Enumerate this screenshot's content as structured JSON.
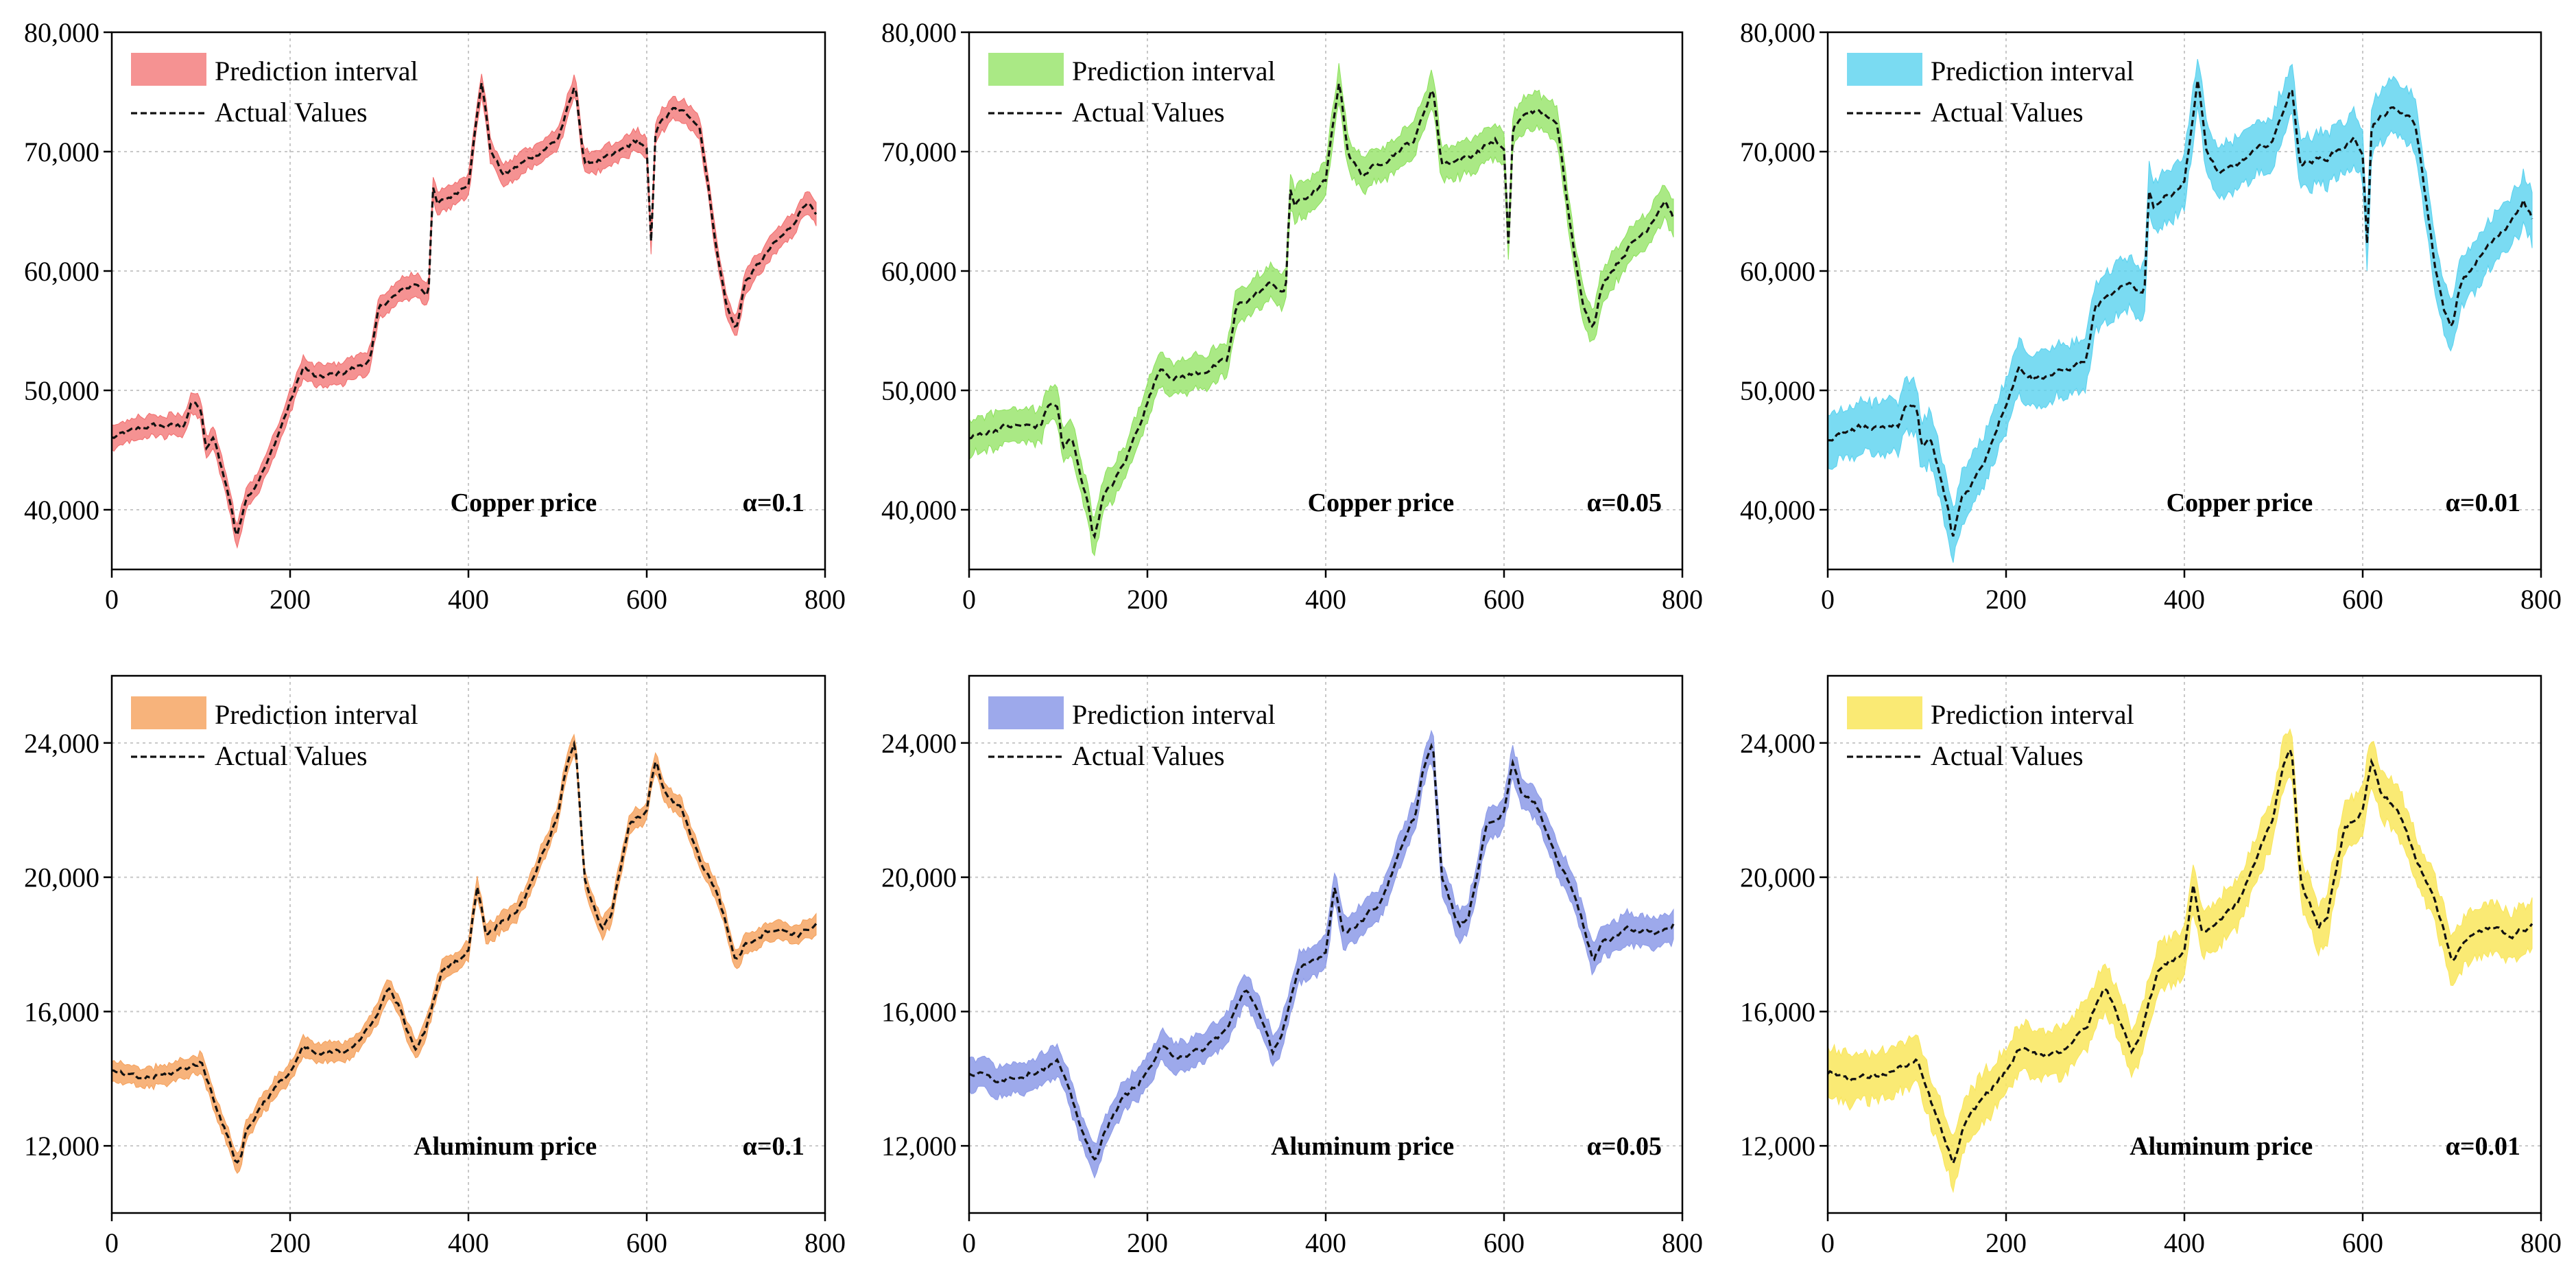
{
  "figure": {
    "legend_labels": [
      "Prediction interval",
      "Actual Values"
    ]
  },
  "chart_data": [
    {
      "type": "line",
      "commodity": "Copper price",
      "alpha": "α=0.1",
      "band_color": "#f26d6d",
      "band_opacity": 0.75,
      "xlim": [
        0,
        800
      ],
      "ylim": [
        35000,
        80000
      ],
      "xticks": [
        0,
        200,
        400,
        600,
        800
      ],
      "xticklabels": [
        "0",
        "200",
        "400",
        "600",
        "800"
      ],
      "yticks": [
        40000,
        50000,
        60000,
        70000,
        80000
      ],
      "yticklabels": [
        "40,000",
        "50,000",
        "60,000",
        "70,000",
        "80,000"
      ],
      "grid": true,
      "legend": "top-left",
      "band_halfwidth": 900,
      "series": [
        {
          "name": "Actual Values",
          "x": [
            0,
            40,
            80,
            90,
            100,
            105,
            115,
            135,
            140,
            150,
            160,
            175,
            200,
            215,
            230,
            260,
            290,
            300,
            340,
            355,
            360,
            365,
            385,
            400,
            415,
            425,
            440,
            470,
            500,
            520,
            530,
            560,
            590,
            600,
            605,
            610,
            630,
            650,
            660,
            680,
            690,
            700,
            710,
            740,
            760,
            780,
            790
          ],
          "y": [
            46000,
            47000,
            47000,
            49000,
            48500,
            45000,
            46000,
            40000,
            37500,
            41000,
            42000,
            44000,
            49000,
            52000,
            51000,
            51500,
            52500,
            57000,
            59000,
            58000,
            67000,
            65500,
            66500,
            67500,
            76000,
            70000,
            68000,
            69500,
            71000,
            75500,
            69000,
            69500,
            71000,
            70000,
            62000,
            72000,
            73500,
            73000,
            72000,
            61000,
            57000,
            55000,
            59000,
            62000,
            63500,
            66000,
            64500
          ]
        }
      ]
    },
    {
      "type": "line",
      "commodity": "Copper price",
      "alpha": "α=0.05",
      "band_color": "#8de25c",
      "band_opacity": 0.75,
      "xlim": [
        0,
        800
      ],
      "ylim": [
        35000,
        80000
      ],
      "xticks": [
        0,
        200,
        400,
        600,
        800
      ],
      "xticklabels": [
        "0",
        "200",
        "400",
        "600",
        "800"
      ],
      "yticks": [
        40000,
        50000,
        60000,
        70000,
        80000
      ],
      "yticklabels": [
        "40,000",
        "50,000",
        "60,000",
        "70,000",
        "80,000"
      ],
      "grid": true,
      "legend": "top-left",
      "band_halfwidth": 1400,
      "series": [
        {
          "name": "Actual Values",
          "x": [
            0,
            40,
            80,
            90,
            100,
            105,
            115,
            135,
            140,
            150,
            160,
            175,
            200,
            215,
            230,
            260,
            290,
            300,
            340,
            355,
            360,
            365,
            385,
            400,
            415,
            425,
            440,
            470,
            500,
            520,
            530,
            560,
            590,
            600,
            605,
            610,
            630,
            650,
            660,
            680,
            690,
            700,
            710,
            740,
            760,
            780,
            790
          ],
          "y": [
            46000,
            47000,
            47000,
            49000,
            48500,
            45000,
            46000,
            40000,
            37500,
            41000,
            42000,
            44000,
            49000,
            52000,
            51000,
            51500,
            52500,
            57000,
            59000,
            58000,
            67000,
            65500,
            66500,
            67500,
            76000,
            70000,
            68000,
            69500,
            71000,
            75500,
            69000,
            69500,
            71000,
            70000,
            62000,
            72000,
            73500,
            73000,
            72000,
            61000,
            57000,
            55000,
            59000,
            62000,
            63500,
            66000,
            64500
          ]
        }
      ]
    },
    {
      "type": "line",
      "commodity": "Copper price",
      "alpha": "α=0.01",
      "band_color": "#59d2ef",
      "band_opacity": 0.8,
      "xlim": [
        0,
        800
      ],
      "ylim": [
        35000,
        80000
      ],
      "xticks": [
        0,
        200,
        400,
        600,
        800
      ],
      "xticklabels": [
        "0",
        "200",
        "400",
        "600",
        "800"
      ],
      "yticks": [
        40000,
        50000,
        60000,
        70000,
        80000
      ],
      "yticklabels": [
        "40,000",
        "50,000",
        "60,000",
        "70,000",
        "80,000"
      ],
      "grid": true,
      "legend": "top-left",
      "band_halfwidth": 2100,
      "series": [
        {
          "name": "Actual Values",
          "x": [
            0,
            40,
            80,
            90,
            100,
            105,
            115,
            135,
            140,
            150,
            160,
            175,
            200,
            215,
            230,
            260,
            290,
            300,
            340,
            355,
            360,
            365,
            385,
            400,
            415,
            425,
            440,
            470,
            500,
            520,
            530,
            560,
            590,
            600,
            605,
            610,
            630,
            650,
            660,
            680,
            690,
            700,
            710,
            740,
            760,
            780,
            790
          ],
          "y": [
            46000,
            47000,
            47000,
            49000,
            48500,
            45000,
            46000,
            40000,
            37500,
            41000,
            42000,
            44000,
            49000,
            52000,
            51000,
            51500,
            52500,
            57000,
            59000,
            58000,
            67000,
            65500,
            66500,
            67500,
            76000,
            70000,
            68000,
            69500,
            71000,
            75500,
            69000,
            69500,
            71000,
            70000,
            62000,
            72000,
            73500,
            73000,
            72000,
            61000,
            57000,
            55000,
            59000,
            62000,
            63500,
            66000,
            64500
          ]
        }
      ]
    },
    {
      "type": "line",
      "commodity": "Aluminum price",
      "alpha": "α=0.1",
      "band_color": "#f5a05a",
      "band_opacity": 0.8,
      "xlim": [
        0,
        800
      ],
      "ylim": [
        10000,
        26000
      ],
      "xticks": [
        0,
        200,
        400,
        600,
        800
      ],
      "xticklabels": [
        "0",
        "200",
        "400",
        "600",
        "800"
      ],
      "yticks": [
        12000,
        16000,
        20000,
        24000
      ],
      "yticklabels": [
        "12,000",
        "16,000",
        "20,000",
        "24,000"
      ],
      "grid": true,
      "legend": "top-left",
      "band_halfwidth": 280,
      "series": [
        {
          "name": "Actual Values",
          "x": [
            0,
            30,
            60,
            100,
            120,
            140,
            145,
            150,
            170,
            200,
            215,
            230,
            260,
            290,
            310,
            320,
            340,
            350,
            370,
            400,
            410,
            420,
            460,
            500,
            510,
            520,
            530,
            550,
            560,
            580,
            600,
            610,
            620,
            640,
            660,
            680,
            700,
            710,
            740,
            770,
            790
          ],
          "y": [
            14200,
            14000,
            14100,
            14500,
            13000,
            11500,
            11700,
            12400,
            13300,
            14200,
            14900,
            14700,
            14800,
            15500,
            16700,
            16300,
            14800,
            15300,
            17200,
            17800,
            19800,
            18300,
            19200,
            21800,
            23300,
            24000,
            20000,
            18500,
            18800,
            21500,
            22000,
            23500,
            22500,
            22000,
            20500,
            19500,
            17500,
            18000,
            18500,
            18300,
            18600
          ]
        }
      ]
    },
    {
      "type": "line",
      "commodity": "Aluminum price",
      "alpha": "α=0.05",
      "band_color": "#8c9ae8",
      "band_opacity": 0.85,
      "xlim": [
        0,
        800
      ],
      "ylim": [
        10000,
        26000
      ],
      "xticks": [
        0,
        200,
        400,
        600,
        800
      ],
      "xticklabels": [
        "0",
        "200",
        "400",
        "600",
        "800"
      ],
      "yticks": [
        12000,
        16000,
        20000,
        24000
      ],
      "yticklabels": [
        "12,000",
        "16,000",
        "20,000",
        "24,000"
      ],
      "grid": true,
      "legend": "top-left",
      "band_halfwidth": 450,
      "series": [
        {
          "name": "Actual Values",
          "x": [
            0,
            30,
            60,
            100,
            120,
            140,
            145,
            150,
            170,
            200,
            215,
            230,
            260,
            290,
            310,
            320,
            340,
            350,
            370,
            400,
            410,
            420,
            460,
            500,
            510,
            520,
            530,
            550,
            560,
            580,
            600,
            610,
            620,
            640,
            660,
            680,
            700,
            710,
            740,
            770,
            790
          ],
          "y": [
            14200,
            14000,
            14100,
            14500,
            13000,
            11500,
            11700,
            12400,
            13300,
            14200,
            14900,
            14700,
            14800,
            15500,
            16700,
            16300,
            14800,
            15300,
            17200,
            17800,
            19800,
            18300,
            19200,
            21800,
            23300,
            24000,
            20000,
            18500,
            18800,
            21500,
            22000,
            23500,
            22500,
            22000,
            20500,
            19500,
            17500,
            18000,
            18500,
            18300,
            18600
          ]
        }
      ]
    },
    {
      "type": "line",
      "commodity": "Aluminum price",
      "alpha": "α=0.01",
      "band_color": "#f9e65c",
      "band_opacity": 0.85,
      "xlim": [
        0,
        800
      ],
      "ylim": [
        10000,
        26000
      ],
      "xticks": [
        0,
        200,
        400,
        600,
        800
      ],
      "xticklabels": [
        "0",
        "200",
        "400",
        "600",
        "800"
      ],
      "yticks": [
        12000,
        16000,
        20000,
        24000
      ],
      "yticklabels": [
        "12,000",
        "16,000",
        "20,000",
        "24,000"
      ],
      "grid": true,
      "legend": "top-left",
      "band_halfwidth": 700,
      "series": [
        {
          "name": "Actual Values",
          "x": [
            0,
            30,
            60,
            100,
            120,
            140,
            145,
            150,
            170,
            200,
            215,
            230,
            260,
            290,
            310,
            320,
            340,
            350,
            370,
            400,
            410,
            420,
            460,
            500,
            510,
            520,
            530,
            550,
            560,
            580,
            600,
            610,
            620,
            640,
            660,
            680,
            700,
            710,
            740,
            770,
            790
          ],
          "y": [
            14200,
            14000,
            14100,
            14500,
            13000,
            11500,
            11700,
            12400,
            13300,
            14200,
            14900,
            14700,
            14800,
            15500,
            16700,
            16300,
            14800,
            15300,
            17200,
            17800,
            19800,
            18300,
            19200,
            21800,
            23300,
            24000,
            20000,
            18500,
            18800,
            21500,
            22000,
            23500,
            22500,
            22000,
            20500,
            19500,
            17500,
            18000,
            18500,
            18300,
            18600
          ]
        }
      ]
    }
  ]
}
